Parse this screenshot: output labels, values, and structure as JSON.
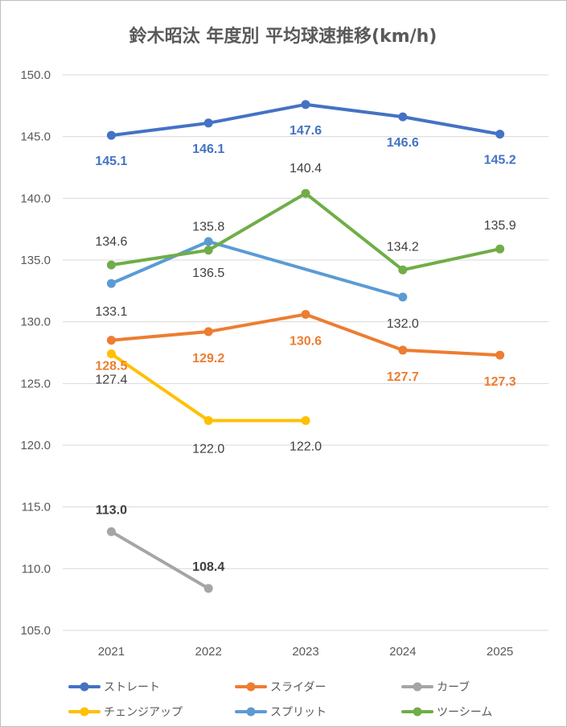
{
  "chart_data": {
    "type": "line",
    "title": "鈴木昭汰 年度別 平均球速推移(km/h)",
    "categories": [
      "2021",
      "2022",
      "2023",
      "2024",
      "2025"
    ],
    "ylim": [
      105,
      150
    ],
    "yticks": [
      "105.0",
      "110.0",
      "115.0",
      "120.0",
      "125.0",
      "130.0",
      "135.0",
      "140.0",
      "145.0",
      "150.0"
    ],
    "grid": true,
    "legend_position": "bottom",
    "series": [
      {
        "name": "ストレート",
        "color": "#4472c4",
        "values": [
          145.1,
          146.1,
          147.6,
          146.6,
          145.2
        ],
        "labels": [
          "145.1",
          "146.1",
          "147.6",
          "146.6",
          "145.2"
        ],
        "label_color": "#4472c4",
        "label_bold": true
      },
      {
        "name": "スライダー",
        "color": "#ed7d31",
        "values": [
          128.5,
          129.2,
          130.6,
          127.7,
          127.3
        ],
        "labels": [
          "128.5",
          "129.2",
          "130.6",
          "127.7",
          "127.3"
        ],
        "label_color": "#ed7d31",
        "label_bold": true
      },
      {
        "name": "カーブ",
        "color": "#a5a5a5",
        "values": [
          113.0,
          108.4,
          null,
          null,
          null
        ],
        "labels": [
          "113.0",
          "108.4",
          null,
          null,
          null
        ],
        "label_color": "#404040",
        "label_bold": true
      },
      {
        "name": "チェンジアップ",
        "color": "#ffc000",
        "values": [
          127.4,
          122.0,
          122.0,
          null,
          null
        ],
        "labels": [
          "127.4",
          "122.0",
          "122.0",
          null,
          null
        ],
        "label_color": "#404040",
        "label_bold": false
      },
      {
        "name": "スプリット",
        "color": "#5b9bd5",
        "values": [
          133.1,
          136.5,
          null,
          132.0,
          null
        ],
        "labels": [
          "133.1",
          "136.5",
          null,
          "132.0",
          null
        ],
        "label_color": "#404040",
        "label_bold": false
      },
      {
        "name": "ツーシーム",
        "color": "#70ad47",
        "values": [
          134.6,
          135.8,
          140.4,
          134.2,
          135.9
        ],
        "labels": [
          "134.6",
          "135.8",
          "140.4",
          "134.2",
          "135.9"
        ],
        "label_color": "#404040",
        "label_bold": false
      }
    ]
  }
}
